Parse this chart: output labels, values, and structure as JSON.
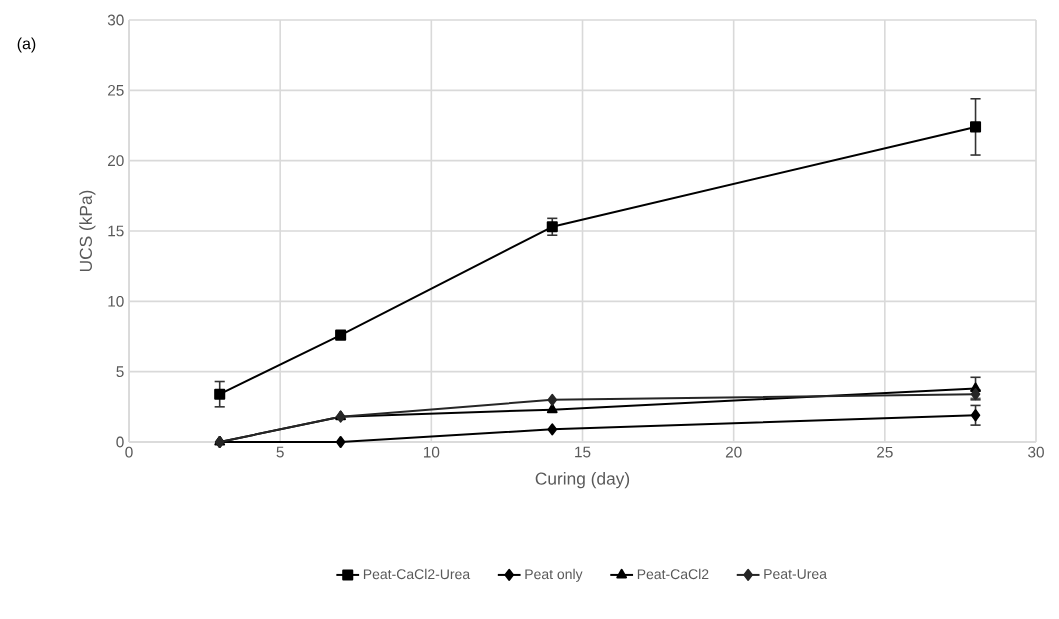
{
  "chart_data": {
    "type": "line",
    "xlabel": "Curing (day)",
    "ylabel": "UCS (kPa)",
    "annotations": [
      "(a)"
    ],
    "x": [
      3,
      7,
      14,
      28
    ],
    "series": [
      {
        "name": "Peat-CaCl2-Urea",
        "color": "#000000",
        "marker": "square",
        "values": [
          3.4,
          7.6,
          15.3,
          22.4
        ],
        "errors": [
          0.9,
          null,
          0.6,
          2.0
        ]
      },
      {
        "name": "Peat only",
        "color": "#000000",
        "marker": "diamond",
        "values": [
          0,
          0,
          0.9,
          1.9
        ],
        "errors": [
          null,
          null,
          null,
          0.7
        ]
      },
      {
        "name": "Peat-CaCl2",
        "color": "#000000",
        "marker": "triangle",
        "values": [
          0,
          1.8,
          2.3,
          3.8
        ],
        "errors": [
          null,
          null,
          null,
          0.8
        ]
      },
      {
        "name": "Peat-Urea",
        "color": "#262626",
        "marker": "diamond",
        "values": [
          0,
          1.8,
          3.0,
          3.4
        ],
        "errors": [
          null,
          null,
          null,
          0.3
        ]
      }
    ],
    "xlim": [
      0,
      30
    ],
    "xticks": [
      0,
      5,
      10,
      15,
      20,
      25,
      30
    ],
    "ylim": [
      0,
      30
    ],
    "yticks": [
      0,
      5,
      10,
      15,
      20,
      25,
      30
    ],
    "grid": true,
    "legend": "bottom",
    "line_style": "solid"
  }
}
